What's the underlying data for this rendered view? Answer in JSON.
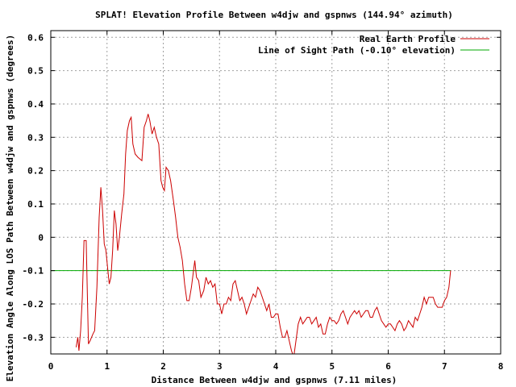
{
  "chart_data": {
    "type": "line",
    "title": "SPLAT! Elevation Profile Between w4djw and gspnws (144.94° azimuth)",
    "xlabel": "Distance Between w4djw and gspnws (7.11 miles)",
    "ylabel": "Elevation Angle Along LOS Path Between w4djw and gspnws (degrees)",
    "xlim": [
      0,
      8
    ],
    "ylim": [
      -0.35,
      0.62
    ],
    "x_ticks": [
      "0",
      "1",
      "2",
      "3",
      "4",
      "5",
      "6",
      "7",
      "8"
    ],
    "y_ticks": [
      "-0.3",
      "-0.2",
      "-0.1",
      "0",
      "0.1",
      "0.2",
      "0.3",
      "0.4",
      "0.5",
      "0.6"
    ],
    "grid": true,
    "legend_position": "top-right",
    "series": [
      {
        "name": "Real Earth Profile",
        "color": "#cc0000",
        "points": [
          [
            0.45,
            -0.33
          ],
          [
            0.48,
            -0.3
          ],
          [
            0.5,
            -0.34
          ],
          [
            0.53,
            -0.28
          ],
          [
            0.56,
            -0.18
          ],
          [
            0.59,
            -0.01
          ],
          [
            0.63,
            -0.01
          ],
          [
            0.67,
            -0.32
          ],
          [
            0.7,
            -0.31
          ],
          [
            0.75,
            -0.29
          ],
          [
            0.78,
            -0.28
          ],
          [
            0.82,
            -0.15
          ],
          [
            0.86,
            0.06
          ],
          [
            0.89,
            0.15
          ],
          [
            0.92,
            0.08
          ],
          [
            0.95,
            -0.02
          ],
          [
            0.98,
            -0.04
          ],
          [
            1.01,
            -0.09
          ],
          [
            1.04,
            -0.14
          ],
          [
            1.07,
            -0.12
          ],
          [
            1.1,
            -0.04
          ],
          [
            1.13,
            0.08
          ],
          [
            1.16,
            0.04
          ],
          [
            1.19,
            -0.04
          ],
          [
            1.22,
            0.0
          ],
          [
            1.26,
            0.07
          ],
          [
            1.3,
            0.13
          ],
          [
            1.33,
            0.25
          ],
          [
            1.36,
            0.32
          ],
          [
            1.4,
            0.35
          ],
          [
            1.43,
            0.36
          ],
          [
            1.46,
            0.28
          ],
          [
            1.5,
            0.25
          ],
          [
            1.55,
            0.24
          ],
          [
            1.62,
            0.23
          ],
          [
            1.66,
            0.33
          ],
          [
            1.7,
            0.35
          ],
          [
            1.73,
            0.37
          ],
          [
            1.76,
            0.35
          ],
          [
            1.8,
            0.31
          ],
          [
            1.84,
            0.33
          ],
          [
            1.88,
            0.3
          ],
          [
            1.92,
            0.28
          ],
          [
            1.96,
            0.17
          ],
          [
            1.99,
            0.15
          ],
          [
            2.02,
            0.14
          ],
          [
            2.05,
            0.21
          ],
          [
            2.09,
            0.2
          ],
          [
            2.13,
            0.17
          ],
          [
            2.18,
            0.11
          ],
          [
            2.22,
            0.06
          ],
          [
            2.26,
            0.0
          ],
          [
            2.3,
            -0.03
          ],
          [
            2.34,
            -0.07
          ],
          [
            2.38,
            -0.14
          ],
          [
            2.42,
            -0.19
          ],
          [
            2.46,
            -0.19
          ],
          [
            2.5,
            -0.15
          ],
          [
            2.53,
            -0.11
          ],
          [
            2.56,
            -0.07
          ],
          [
            2.59,
            -0.12
          ],
          [
            2.63,
            -0.13
          ],
          [
            2.67,
            -0.18
          ],
          [
            2.72,
            -0.16
          ],
          [
            2.76,
            -0.12
          ],
          [
            2.8,
            -0.14
          ],
          [
            2.84,
            -0.13
          ],
          [
            2.88,
            -0.15
          ],
          [
            2.92,
            -0.14
          ],
          [
            2.96,
            -0.2
          ],
          [
            3.0,
            -0.2
          ],
          [
            3.04,
            -0.23
          ],
          [
            3.08,
            -0.2
          ],
          [
            3.12,
            -0.2
          ],
          [
            3.16,
            -0.18
          ],
          [
            3.2,
            -0.19
          ],
          [
            3.24,
            -0.14
          ],
          [
            3.28,
            -0.13
          ],
          [
            3.32,
            -0.16
          ],
          [
            3.36,
            -0.19
          ],
          [
            3.4,
            -0.18
          ],
          [
            3.44,
            -0.2
          ],
          [
            3.48,
            -0.23
          ],
          [
            3.52,
            -0.21
          ],
          [
            3.56,
            -0.19
          ],
          [
            3.6,
            -0.17
          ],
          [
            3.64,
            -0.18
          ],
          [
            3.68,
            -0.15
          ],
          [
            3.72,
            -0.16
          ],
          [
            3.76,
            -0.18
          ],
          [
            3.8,
            -0.2
          ],
          [
            3.84,
            -0.22
          ],
          [
            3.88,
            -0.2
          ],
          [
            3.92,
            -0.24
          ],
          [
            3.96,
            -0.24
          ],
          [
            4.0,
            -0.23
          ],
          [
            4.04,
            -0.23
          ],
          [
            4.08,
            -0.27
          ],
          [
            4.12,
            -0.3
          ],
          [
            4.16,
            -0.3
          ],
          [
            4.2,
            -0.28
          ],
          [
            4.24,
            -0.31
          ],
          [
            4.28,
            -0.34
          ],
          [
            4.32,
            -0.36
          ],
          [
            4.36,
            -0.31
          ],
          [
            4.4,
            -0.26
          ],
          [
            4.44,
            -0.24
          ],
          [
            4.48,
            -0.26
          ],
          [
            4.52,
            -0.25
          ],
          [
            4.56,
            -0.24
          ],
          [
            4.6,
            -0.24
          ],
          [
            4.64,
            -0.26
          ],
          [
            4.68,
            -0.25
          ],
          [
            4.72,
            -0.24
          ],
          [
            4.76,
            -0.27
          ],
          [
            4.8,
            -0.26
          ],
          [
            4.84,
            -0.29
          ],
          [
            4.88,
            -0.29
          ],
          [
            4.92,
            -0.26
          ],
          [
            4.96,
            -0.24
          ],
          [
            5.0,
            -0.25
          ],
          [
            5.04,
            -0.25
          ],
          [
            5.08,
            -0.26
          ],
          [
            5.12,
            -0.25
          ],
          [
            5.16,
            -0.23
          ],
          [
            5.2,
            -0.22
          ],
          [
            5.24,
            -0.24
          ],
          [
            5.28,
            -0.26
          ],
          [
            5.32,
            -0.24
          ],
          [
            5.36,
            -0.23
          ],
          [
            5.4,
            -0.22
          ],
          [
            5.44,
            -0.23
          ],
          [
            5.48,
            -0.22
          ],
          [
            5.52,
            -0.24
          ],
          [
            5.56,
            -0.23
          ],
          [
            5.6,
            -0.22
          ],
          [
            5.64,
            -0.22
          ],
          [
            5.68,
            -0.24
          ],
          [
            5.72,
            -0.24
          ],
          [
            5.76,
            -0.22
          ],
          [
            5.8,
            -0.21
          ],
          [
            5.84,
            -0.23
          ],
          [
            5.88,
            -0.25
          ],
          [
            5.92,
            -0.26
          ],
          [
            5.96,
            -0.27
          ],
          [
            6.0,
            -0.26
          ],
          [
            6.04,
            -0.26
          ],
          [
            6.08,
            -0.27
          ],
          [
            6.12,
            -0.28
          ],
          [
            6.16,
            -0.26
          ],
          [
            6.2,
            -0.25
          ],
          [
            6.24,
            -0.26
          ],
          [
            6.28,
            -0.28
          ],
          [
            6.32,
            -0.27
          ],
          [
            6.36,
            -0.25
          ],
          [
            6.4,
            -0.26
          ],
          [
            6.44,
            -0.27
          ],
          [
            6.48,
            -0.24
          ],
          [
            6.52,
            -0.25
          ],
          [
            6.56,
            -0.23
          ],
          [
            6.6,
            -0.21
          ],
          [
            6.64,
            -0.18
          ],
          [
            6.68,
            -0.2
          ],
          [
            6.72,
            -0.18
          ],
          [
            6.76,
            -0.18
          ],
          [
            6.8,
            -0.18
          ],
          [
            6.84,
            -0.2
          ],
          [
            6.88,
            -0.21
          ],
          [
            6.92,
            -0.21
          ],
          [
            6.96,
            -0.21
          ],
          [
            7.0,
            -0.19
          ],
          [
            7.04,
            -0.18
          ],
          [
            7.08,
            -0.15
          ],
          [
            7.11,
            -0.1
          ]
        ]
      },
      {
        "name": "Line of Sight Path (-0.10° elevation)",
        "color": "#00aa00",
        "points": [
          [
            0.0,
            -0.1
          ],
          [
            7.11,
            -0.1
          ]
        ]
      }
    ]
  }
}
